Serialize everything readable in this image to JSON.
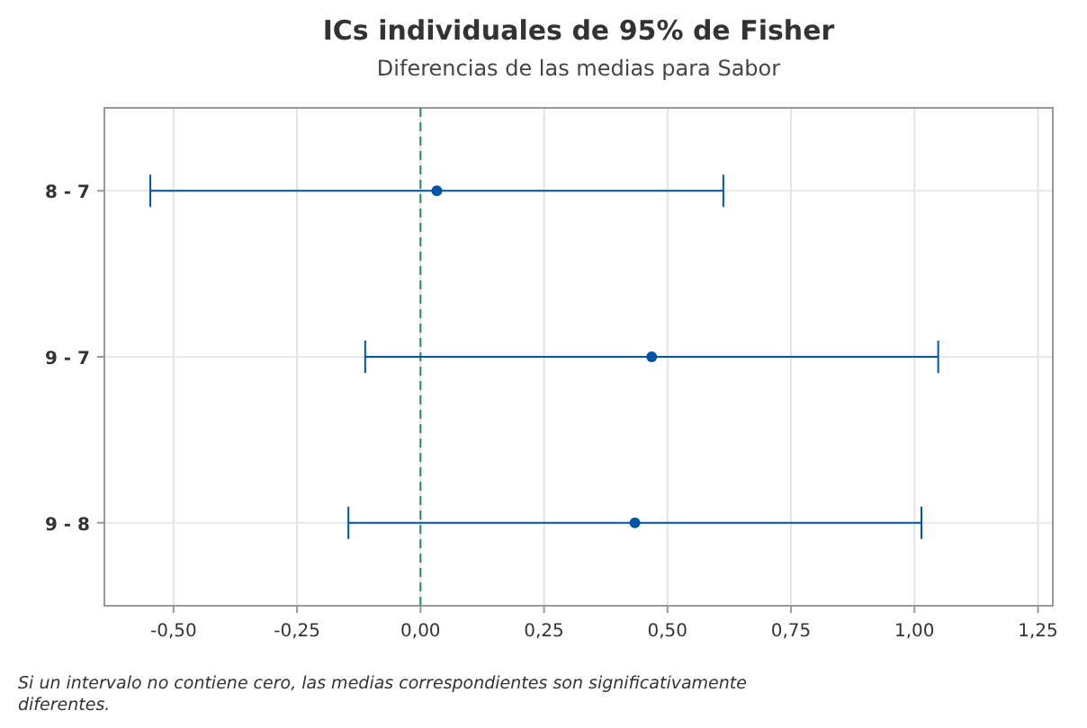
{
  "chart_data": {
    "type": "scatter",
    "orientation": "horizontal",
    "title": "ICs individuales de 95% de Fisher",
    "subtitle": "Diferencias de las medias para Sabor",
    "categories": [
      "8 - 7",
      "9 - 7",
      "9 - 8"
    ],
    "values": [
      0.033,
      0.468,
      0.434
    ],
    "errors": [
      0.58,
      0.58,
      0.58
    ],
    "color": "#0054a6",
    "marker": "circle",
    "xlim": [
      -0.64,
      1.28
    ],
    "xticks": [
      {
        "value": -0.5,
        "label": "-0,50"
      },
      {
        "value": -0.25,
        "label": "-0,25"
      },
      {
        "value": 0,
        "label": "0,00"
      },
      {
        "value": 0.25,
        "label": "0,25"
      },
      {
        "value": 0.5,
        "label": "0,50"
      },
      {
        "value": 0.75,
        "label": "0,75"
      },
      {
        "value": 1,
        "label": "1,00"
      },
      {
        "value": 1.25,
        "label": "1,25"
      }
    ],
    "ref_lines": [
      {
        "axis": "x",
        "value": 0,
        "color": "#2e8b57",
        "line_style": "dashed"
      }
    ],
    "grid": true,
    "annotations": [
      "Si un intervalo no contiene cero, las medias correspondientes son significativamente diferentes."
    ]
  }
}
